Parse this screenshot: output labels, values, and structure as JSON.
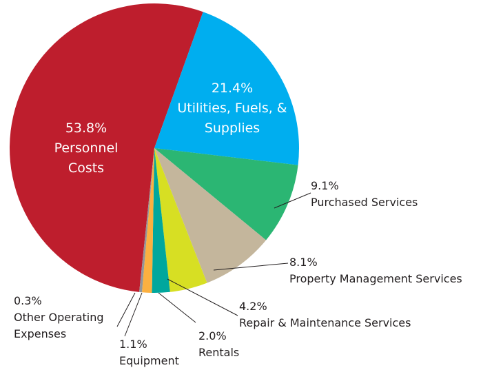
{
  "chart_data": {
    "type": "pie",
    "categories": [
      "Personnel Costs",
      "Utilities, Fuels, & Supplies",
      "Purchased Services",
      "Property Management Services",
      "Repair & Maintenance Services",
      "Rentals",
      "Equipment",
      "Other Operating Expenses"
    ],
    "values": [
      53.8,
      21.4,
      9.1,
      8.1,
      4.2,
      2.0,
      1.1,
      0.3
    ],
    "value_labels": [
      "53.8%",
      "21.4%",
      "9.1%",
      "8.1%",
      "4.2%",
      "2.0%",
      "1.1%",
      "0.3%"
    ],
    "colors": [
      "#be1e2d",
      "#00aeef",
      "#2bb673",
      "#c4b69c",
      "#d7df23",
      "#00a79d",
      "#fbb040",
      "#939598"
    ]
  }
}
